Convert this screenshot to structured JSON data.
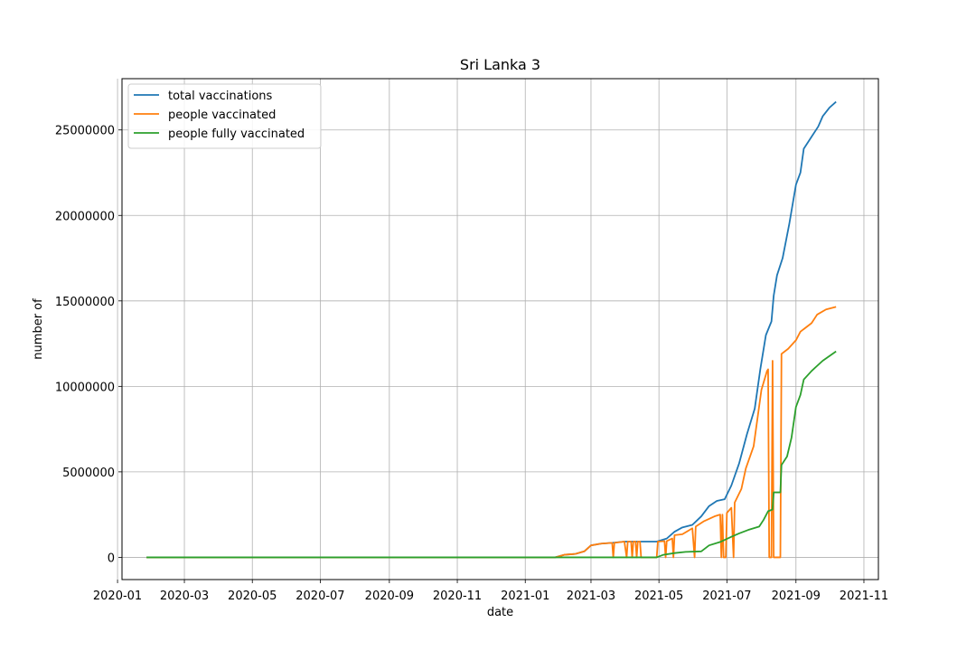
{
  "chart_data": {
    "type": "line",
    "title": "Sri Lanka 3",
    "xlabel": "date",
    "ylabel": "number of",
    "xlim": [
      "2020-01-05",
      "2021-11-14"
    ],
    "ylim": [
      -1300000,
      28000000
    ],
    "grid": true,
    "legend_position": "top-left",
    "x_ticks": [
      "2020-01",
      "2020-03",
      "2020-05",
      "2020-07",
      "2020-09",
      "2020-11",
      "2021-01",
      "2021-03",
      "2021-05",
      "2021-07",
      "2021-09",
      "2021-11"
    ],
    "y_ticks": [
      0,
      5000000,
      10000000,
      15000000,
      20000000,
      25000000
    ],
    "y_tick_labels": [
      "0",
      "5000000",
      "10000000",
      "15000000",
      "20000000",
      "25000000"
    ],
    "series": [
      {
        "name": "total vaccinations",
        "color": "#1f77b4",
        "points": [
          [
            "2020-01-27",
            0
          ],
          [
            "2021-01-28",
            0
          ],
          [
            "2021-02-05",
            150000
          ],
          [
            "2021-02-15",
            200000
          ],
          [
            "2021-02-23",
            350000
          ],
          [
            "2021-03-01",
            700000
          ],
          [
            "2021-03-10",
            800000
          ],
          [
            "2021-03-20",
            850000
          ],
          [
            "2021-03-31",
            920000
          ],
          [
            "2021-04-15",
            920000
          ],
          [
            "2021-04-29",
            920000
          ],
          [
            "2021-05-08",
            1100000
          ],
          [
            "2021-05-15",
            1500000
          ],
          [
            "2021-05-22",
            1750000
          ],
          [
            "2021-05-31",
            1900000
          ],
          [
            "2021-06-08",
            2400000
          ],
          [
            "2021-06-15",
            3000000
          ],
          [
            "2021-06-22",
            3300000
          ],
          [
            "2021-06-29",
            3400000
          ],
          [
            "2021-07-05",
            4200000
          ],
          [
            "2021-07-12",
            5500000
          ],
          [
            "2021-07-19",
            7200000
          ],
          [
            "2021-07-26",
            8700000
          ],
          [
            "2021-07-31",
            11000000
          ],
          [
            "2021-08-05",
            13000000
          ],
          [
            "2021-08-10",
            13800000
          ],
          [
            "2021-08-12",
            15300000
          ],
          [
            "2021-08-15",
            16500000
          ],
          [
            "2021-08-20",
            17500000
          ],
          [
            "2021-08-26",
            19500000
          ],
          [
            "2021-09-01",
            21800000
          ],
          [
            "2021-09-05",
            22500000
          ],
          [
            "2021-09-08",
            23900000
          ],
          [
            "2021-09-15",
            24600000
          ],
          [
            "2021-09-21",
            25200000
          ],
          [
            "2021-09-25",
            25800000
          ],
          [
            "2021-10-01",
            26300000
          ],
          [
            "2021-10-07",
            26650000
          ]
        ]
      },
      {
        "name": "people vaccinated",
        "color": "#ff7f0e",
        "points": [
          [
            "2020-01-27",
            0
          ],
          [
            "2021-01-28",
            0
          ],
          [
            "2021-02-05",
            150000
          ],
          [
            "2021-02-15",
            200000
          ],
          [
            "2021-02-23",
            350000
          ],
          [
            "2021-03-01",
            700000
          ],
          [
            "2021-03-10",
            800000
          ],
          [
            "2021-03-20",
            850000
          ],
          [
            "2021-03-21",
            0
          ],
          [
            "2021-03-22",
            850000
          ],
          [
            "2021-03-31",
            920000
          ],
          [
            "2021-04-02",
            0
          ],
          [
            "2021-04-03",
            920000
          ],
          [
            "2021-04-06",
            920000
          ],
          [
            "2021-04-07",
            0
          ],
          [
            "2021-04-08",
            920000
          ],
          [
            "2021-04-10",
            920000
          ],
          [
            "2021-04-11",
            0
          ],
          [
            "2021-04-12",
            920000
          ],
          [
            "2021-04-14",
            920000
          ],
          [
            "2021-04-15",
            0
          ],
          [
            "2021-04-29",
            0
          ],
          [
            "2021-04-30",
            920000
          ],
          [
            "2021-05-06",
            950000
          ],
          [
            "2021-05-07",
            0
          ],
          [
            "2021-05-08",
            950000
          ],
          [
            "2021-05-13",
            1100000
          ],
          [
            "2021-05-14",
            0
          ],
          [
            "2021-05-15",
            1300000
          ],
          [
            "2021-05-22",
            1350000
          ],
          [
            "2021-05-31",
            1700000
          ],
          [
            "2021-06-02",
            0
          ],
          [
            "2021-06-03",
            1800000
          ],
          [
            "2021-06-10",
            2100000
          ],
          [
            "2021-06-20",
            2400000
          ],
          [
            "2021-06-25",
            2500000
          ],
          [
            "2021-06-26",
            0
          ],
          [
            "2021-06-27",
            2500000
          ],
          [
            "2021-06-28",
            0
          ],
          [
            "2021-06-30",
            0
          ],
          [
            "2021-07-01",
            2600000
          ],
          [
            "2021-07-05",
            2900000
          ],
          [
            "2021-07-07",
            0
          ],
          [
            "2021-07-08",
            3200000
          ],
          [
            "2021-07-14",
            4000000
          ],
          [
            "2021-07-18",
            5200000
          ],
          [
            "2021-07-25",
            6500000
          ],
          [
            "2021-08-01",
            9800000
          ],
          [
            "2021-08-06",
            10900000
          ],
          [
            "2021-08-07",
            11000000
          ],
          [
            "2021-08-08",
            0
          ],
          [
            "2021-08-10",
            0
          ],
          [
            "2021-08-11",
            11500000
          ],
          [
            "2021-08-12",
            0
          ],
          [
            "2021-08-18",
            0
          ],
          [
            "2021-08-19",
            11900000
          ],
          [
            "2021-08-25",
            12200000
          ],
          [
            "2021-09-01",
            12700000
          ],
          [
            "2021-09-05",
            13200000
          ],
          [
            "2021-09-15",
            13700000
          ],
          [
            "2021-09-20",
            14200000
          ],
          [
            "2021-09-28",
            14500000
          ],
          [
            "2021-10-07",
            14650000
          ]
        ]
      },
      {
        "name": "people fully vaccinated",
        "color": "#2ca02c",
        "points": [
          [
            "2020-01-27",
            0
          ],
          [
            "2021-04-29",
            0
          ],
          [
            "2021-05-05",
            150000
          ],
          [
            "2021-05-15",
            250000
          ],
          [
            "2021-05-25",
            320000
          ],
          [
            "2021-06-08",
            350000
          ],
          [
            "2021-06-15",
            700000
          ],
          [
            "2021-06-25",
            900000
          ],
          [
            "2021-07-05",
            1200000
          ],
          [
            "2021-07-12",
            1400000
          ],
          [
            "2021-07-20",
            1600000
          ],
          [
            "2021-07-30",
            1800000
          ],
          [
            "2021-08-03",
            2200000
          ],
          [
            "2021-08-07",
            2700000
          ],
          [
            "2021-08-11",
            2800000
          ],
          [
            "2021-08-12",
            3800000
          ],
          [
            "2021-08-18",
            3800000
          ],
          [
            "2021-08-19",
            5400000
          ],
          [
            "2021-08-24",
            5900000
          ],
          [
            "2021-08-28",
            7000000
          ],
          [
            "2021-09-01",
            8800000
          ],
          [
            "2021-09-05",
            9500000
          ],
          [
            "2021-09-08",
            10400000
          ],
          [
            "2021-09-15",
            10900000
          ],
          [
            "2021-09-20",
            11200000
          ],
          [
            "2021-09-25",
            11500000
          ],
          [
            "2021-10-07",
            12050000
          ]
        ]
      }
    ]
  }
}
